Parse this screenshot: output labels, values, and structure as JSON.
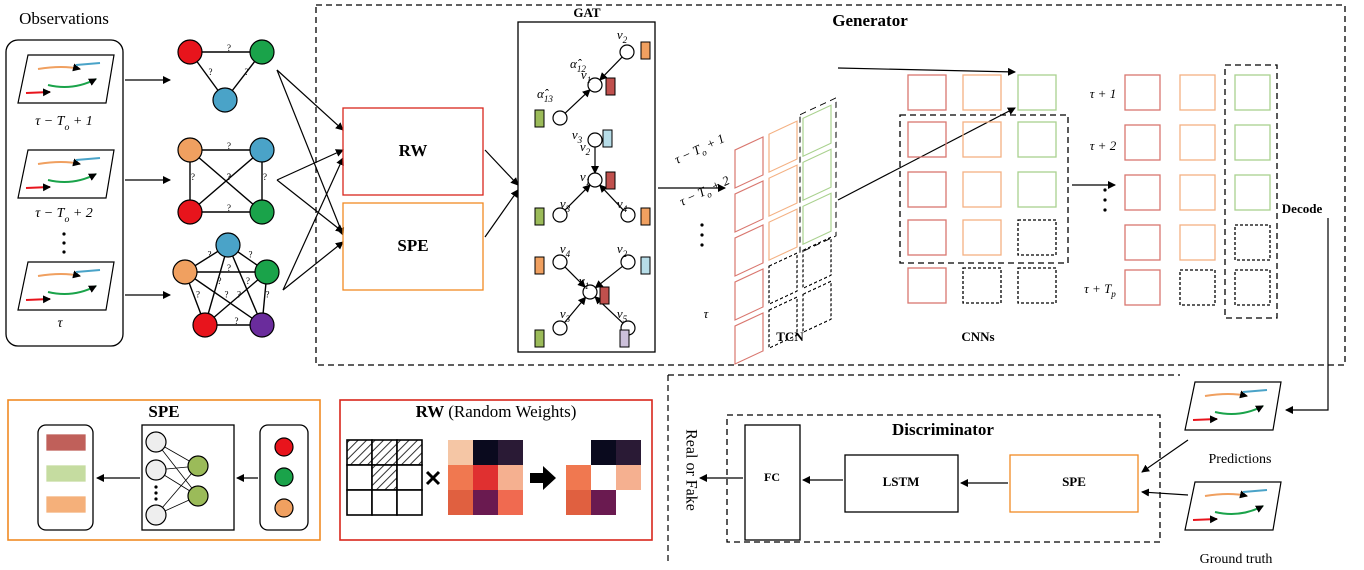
{
  "observations": {
    "title": "Observations",
    "frames": [
      {
        "base": "τ − T",
        "sub": "o",
        "tail": " + 1"
      },
      {
        "base": "τ − T",
        "sub": "o",
        "tail": " + 2"
      },
      {
        "base": "τ"
      }
    ]
  },
  "graphs": {
    "edge_label": "?"
  },
  "generator": {
    "title": "Generator",
    "rw": "RW",
    "spe": "SPE",
    "gat": {
      "title": "GAT",
      "labels": [
        {
          "base": "v",
          "sub": "2"
        },
        {
          "base": "α̂",
          "sub": "12"
        },
        {
          "base": "v",
          "sub": "1"
        },
        {
          "base": "α̂",
          "sub": "13"
        },
        {
          "base": "v",
          "sub": "3"
        },
        {
          "base": "v",
          "sub": "2"
        },
        {
          "base": "v",
          "sub": "1"
        },
        {
          "base": "v",
          "sub": "3"
        },
        {
          "base": "v",
          "sub": "4"
        },
        {
          "base": "v",
          "sub": "4"
        },
        {
          "base": "v",
          "sub": "2"
        },
        {
          "base": "v",
          "sub": "1"
        },
        {
          "base": "v",
          "sub": "3"
        },
        {
          "base": "v",
          "sub": "5"
        }
      ]
    },
    "tcn": {
      "title": "TCN",
      "times": [
        {
          "base": "τ − T",
          "sub": "o",
          "tail": " + 1"
        },
        {
          "base": "τ − T",
          "sub": "o",
          "tail": " + 2"
        },
        {
          "base": "τ"
        }
      ]
    },
    "cnns": "CNNs",
    "decode": "Decode",
    "outputs": [
      {
        "base": "τ + 1"
      },
      {
        "base": "τ + 2"
      },
      {
        "base": "τ + T",
        "sub": "p"
      }
    ]
  },
  "spe_module": {
    "title": "SPE"
  },
  "rw_module": {
    "title": "RW",
    "subtitle": "(Random Weights)"
  },
  "discriminator": {
    "title": "Discriminator",
    "fc": "FC",
    "lstm": "LSTM",
    "spe": "SPE",
    "output": "Real or Fake"
  },
  "inputs": {
    "predictions": "Predictions",
    "ground_truth": "Ground truth"
  }
}
